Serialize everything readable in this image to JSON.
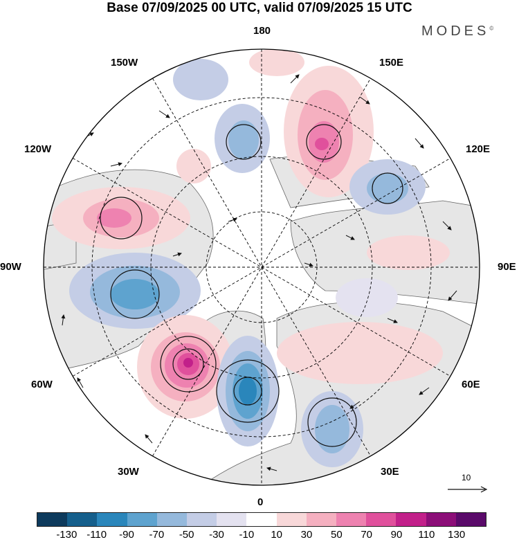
{
  "title": "Base 07/09/2025 00 UTC, valid 07/09/2025 15 UTC",
  "brand": {
    "name": "MODES",
    "mark": "©"
  },
  "longitude_labels": {
    "top": "180",
    "bottom": "0",
    "left": "90W",
    "right": "90E",
    "upper_left_1": "150W",
    "upper_left_2": "120W",
    "lower_left_1": "60W",
    "lower_left_2": "30W",
    "upper_right_1": "150E",
    "upper_right_2": "120E",
    "lower_right_1": "60E",
    "lower_right_2": "30E"
  },
  "reference_vector": {
    "label": "10"
  },
  "colorbar": {
    "tick_labels": [
      "-130",
      "-110",
      "-90",
      "-70",
      "-50",
      "-30",
      "-10",
      "10",
      "30",
      "50",
      "70",
      "90",
      "110",
      "130"
    ],
    "colors": [
      "#0d3a5c",
      "#155f8c",
      "#2a86bb",
      "#5ea3cf",
      "#95b9dc",
      "#c4cde6",
      "#e4e2f0",
      "#ffffff",
      "#f8d8d9",
      "#f5b0c0",
      "#ee82b0",
      "#e0509c",
      "#c2208a",
      "#8c0e78",
      "#5a0a6a"
    ]
  },
  "legend_colors": {
    "land": "#e8e8e8",
    "ocean": "#ffffff",
    "coast": "#555555",
    "grid": "#000000"
  }
}
